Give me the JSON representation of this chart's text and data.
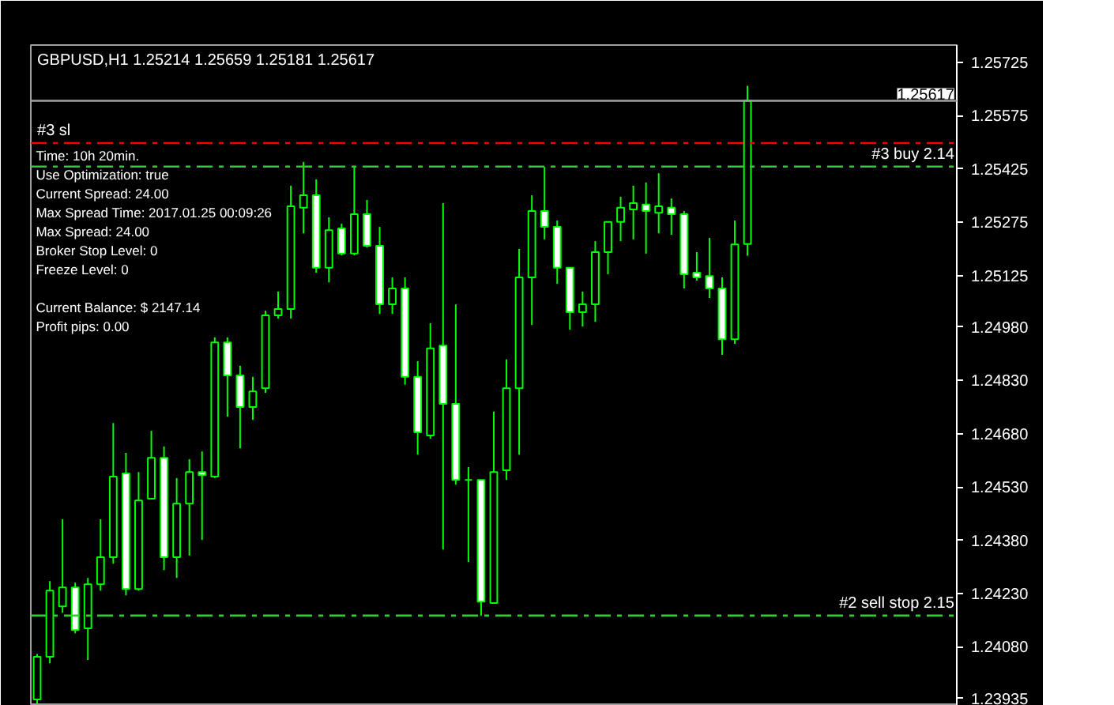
{
  "chart_data": {
    "type": "candlestick",
    "title": "GBPUSD,H1  1.25214 1.25659 1.25181 1.25617",
    "categories": [
      null,
      null,
      null,
      null,
      null,
      null,
      null,
      null,
      null,
      null,
      null,
      null,
      null,
      null,
      null,
      null,
      null,
      null,
      null,
      null,
      null,
      null,
      null,
      null,
      null,
      null,
      null,
      null,
      null,
      null,
      null,
      null,
      null,
      null,
      null,
      null,
      null,
      null,
      null,
      null,
      null,
      null,
      null,
      null,
      null,
      null,
      null,
      null,
      null,
      null,
      null,
      null,
      null,
      null,
      null,
      null,
      null,
      null,
      null,
      null,
      null,
      null,
      null,
      null,
      null,
      null,
      null,
      null,
      null,
      null,
      null,
      null,
      null
    ],
    "ohlc": [
      [
        1.23932,
        1.2406,
        1.2392,
        1.24052
      ],
      [
        1.24052,
        1.24265,
        1.24034,
        1.24238
      ],
      [
        1.24194,
        1.24439,
        1.24176,
        1.24247
      ],
      [
        1.24247,
        1.24261,
        1.24118,
        1.24127
      ],
      [
        1.24132,
        1.24274,
        1.24043,
        1.24256
      ],
      [
        1.24256,
        1.24439,
        1.24238,
        1.24332
      ],
      [
        1.24332,
        1.2471,
        1.24314,
        1.24559
      ],
      [
        1.24568,
        1.24626,
        1.24225,
        1.24243
      ],
      [
        1.24243,
        1.24572,
        1.24238,
        1.24492
      ],
      [
        1.24497,
        1.24688,
        1.24497,
        1.24612
      ],
      [
        1.24612,
        1.24644,
        1.24296,
        1.24332
      ],
      [
        1.24332,
        1.24555,
        1.24274,
        1.24483
      ],
      [
        1.24483,
        1.24608,
        1.24337,
        1.24572
      ],
      [
        1.24572,
        1.2463,
        1.24381,
        1.24563
      ],
      [
        1.24559,
        1.24951,
        1.24555,
        1.24937
      ],
      [
        1.24937,
        1.24951,
        1.24728,
        1.24844
      ],
      [
        1.24844,
        1.24871,
        1.24639,
        1.24755
      ],
      [
        1.24755,
        1.2484,
        1.24719,
        1.24799
      ],
      [
        1.24808,
        1.25026,
        1.24795,
        1.25013
      ],
      [
        1.25013,
        1.2508,
        1.25004,
        1.25031
      ],
      [
        1.25031,
        1.25378,
        1.25004,
        1.2532
      ],
      [
        1.25316,
        1.25445,
        1.25244,
        1.25351
      ],
      [
        1.25351,
        1.25396,
        1.25133,
        1.25147
      ],
      [
        1.25147,
        1.25289,
        1.25106,
        1.25253
      ],
      [
        1.25258,
        1.25271,
        1.25182,
        1.25187
      ],
      [
        1.25187,
        1.25431,
        1.25182,
        1.25298
      ],
      [
        1.25298,
        1.25338,
        1.25204,
        1.25209
      ],
      [
        1.25209,
        1.25262,
        1.25017,
        1.25044
      ],
      [
        1.25044,
        1.2512,
        1.25017,
        1.25089
      ],
      [
        1.25089,
        1.2512,
        1.24818,
        1.2484
      ],
      [
        1.2484,
        1.24884,
        1.24621,
        1.24684
      ],
      [
        1.24675,
        1.24991,
        1.24666,
        1.2492
      ],
      [
        1.24928,
        1.25329,
        1.24354,
        1.24764
      ],
      [
        1.24764,
        1.25044,
        1.24537,
        1.2455
      ],
      [
        1.2455,
        1.24586,
        1.24319,
        1.2455
      ],
      [
        1.2455,
        1.2455,
        1.24168,
        1.24207
      ],
      [
        1.24203,
        1.24742,
        1.24203,
        1.24572
      ],
      [
        1.24577,
        1.24889,
        1.2455,
        1.24808
      ],
      [
        1.24808,
        1.252,
        1.24621,
        1.2512
      ],
      [
        1.2512,
        1.25351,
        1.24986,
        1.25307
      ],
      [
        1.25307,
        1.25431,
        1.25227,
        1.25262
      ],
      [
        1.25262,
        1.2528,
        1.25102,
        1.25147
      ],
      [
        1.25147,
        1.25147,
        1.24973,
        1.25022
      ],
      [
        1.25022,
        1.2508,
        1.24982,
        1.25044
      ],
      [
        1.25044,
        1.25222,
        1.24995,
        1.25191
      ],
      [
        1.25191,
        1.25276,
        1.25129,
        1.25276
      ],
      [
        1.25276,
        1.25347,
        1.25222,
        1.25316
      ],
      [
        1.25311,
        1.25378,
        1.25227,
        1.25329
      ],
      [
        1.25325,
        1.25387,
        1.25187,
        1.25307
      ],
      [
        1.25302,
        1.25413,
        1.25244,
        1.2532
      ],
      [
        1.25316,
        1.25342,
        1.2524,
        1.25298
      ],
      [
        1.25298,
        1.25307,
        1.25089,
        1.25129
      ],
      [
        1.25133,
        1.25191,
        1.25111,
        1.2512
      ],
      [
        1.25124,
        1.25231,
        1.25062,
        1.25089
      ],
      [
        1.25089,
        1.2512,
        1.24902,
        1.24946
      ],
      [
        1.24946,
        1.2528,
        1.24933,
        1.25213
      ],
      [
        1.25214,
        1.25659,
        1.25181,
        1.25617
      ],
      null,
      null,
      null,
      null,
      null,
      null,
      null,
      null,
      null,
      null,
      null,
      null,
      null,
      null,
      null,
      null
    ],
    "color": "#00ff00",
    "colors": [
      "#000000",
      "#000000",
      "#000000",
      "#ffffff",
      "#000000",
      "#000000",
      "#000000",
      "#ffffff",
      "#000000",
      "#000000",
      "#ffffff",
      "#000000",
      "#000000",
      "#ffffff",
      "#000000",
      "#ffffff",
      "#ffffff",
      "#000000",
      "#000000",
      "#000000",
      "#000000",
      "#000000",
      "#ffffff",
      "#000000",
      "#ffffff",
      "#000000",
      "#ffffff",
      "#ffffff",
      "#000000",
      "#ffffff",
      "#ffffff",
      "#000000",
      "#ffffff",
      "#ffffff",
      "#00ff00",
      "#ffffff",
      "#000000",
      "#000000",
      "#000000",
      "#000000",
      "#ffffff",
      "#ffffff",
      "#ffffff",
      "#000000",
      "#000000",
      "#000000",
      "#000000",
      "#000000",
      "#ffffff",
      "#000000",
      "#ffffff",
      "#ffffff",
      "#ffffff",
      "#ffffff",
      "#ffffff",
      "#000000",
      "#000000",
      null,
      null,
      null,
      null,
      null,
      null,
      null,
      null,
      null,
      null,
      null,
      null,
      null,
      null,
      null,
      null
    ],
    "ylim": [
      1.23914,
      1.25774
    ],
    "yticks": [
      {
        "value": 1.23935,
        "label": "1.23935"
      },
      {
        "value": 1.2408,
        "label": "1.24080"
      },
      {
        "value": 1.2423,
        "label": "1.24230"
      },
      {
        "value": 1.2438,
        "label": "1.24380"
      },
      {
        "value": 1.2453,
        "label": "1.24530"
      },
      {
        "value": 1.2468,
        "label": "1.24680"
      },
      {
        "value": 1.2483,
        "label": "1.24830"
      },
      {
        "value": 1.2498,
        "label": "1.24980"
      },
      1.25125,
      1.25275,
      1.25425,
      1.25575,
      1.25725
    ],
    "ref_lines": [
      {
        "axis": "y",
        "value": 1.25617,
        "label": "1.25617",
        "color": "#a0a0a0",
        "line_style": "solid"
      },
      {
        "axis": "y",
        "value": 1.25498,
        "label": "#3 sl",
        "color": "#ff0000",
        "line_style": "dashed"
      },
      {
        "axis": "y",
        "value": 1.25432,
        "label": "#3 buy 2.14",
        "color": "#32cd32",
        "line_style": "dashed"
      },
      {
        "axis": "y",
        "value": 1.24168,
        "label": "#2 sell stop 2.15",
        "color": "#32cd32",
        "line_style": "dashed"
      }
    ],
    "annotations": [
      "Time: 10h 20min.",
      "Use Optimization: true",
      "Current Spread: 24.00",
      "Max Spread Time: 2017.01.25 00:09:26",
      "Max Spread: 24.00",
      "Broker Stop Level: 0",
      "Freeze Level: 0",
      "Current Balance: $ 2147.14",
      "Profit pips: 0.00"
    ]
  }
}
